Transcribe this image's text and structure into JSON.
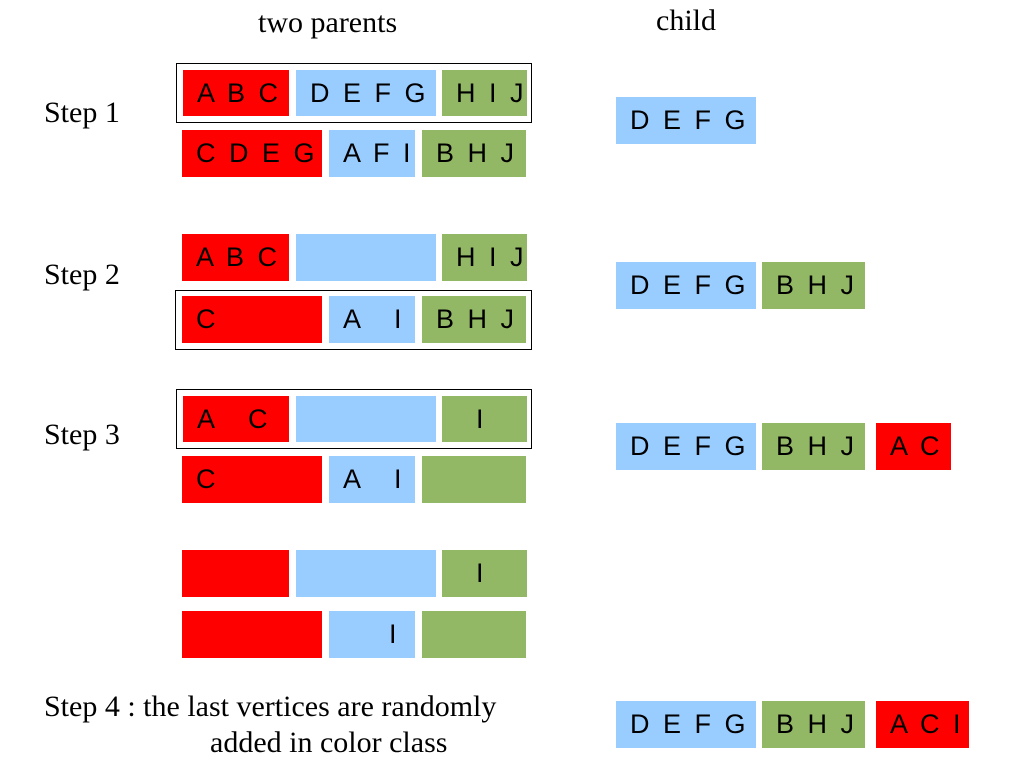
{
  "headers": {
    "parents": "two parents",
    "child": "child"
  },
  "steps": [
    {
      "label": "Step 1",
      "parent1": [
        "A B C",
        "D E F G",
        "H I J"
      ],
      "parent2": [
        "C D E G",
        "A F I",
        "B H J"
      ],
      "child": [
        "D E F G"
      ]
    },
    {
      "label": "Step 2",
      "parent1": [
        "A B C",
        "",
        "H I J"
      ],
      "parent2": [
        "C",
        "A   I",
        "B H J"
      ],
      "child": [
        "D E F G",
        "B H J"
      ]
    },
    {
      "label": "Step 3",
      "parent1": [
        "A   C",
        "",
        "I"
      ],
      "parent2": [
        "C",
        "A   I",
        ""
      ],
      "child": [
        "D E F G",
        "B H J",
        "A C"
      ]
    },
    {
      "label": "",
      "parent1": [
        "",
        "",
        "I"
      ],
      "parent2": [
        "",
        "I",
        ""
      ],
      "child": []
    }
  ],
  "step4": {
    "caption_line1": "Step 4 : the last vertices are randomly",
    "caption_line2": "added in color class",
    "child": [
      "D E F G",
      "B H J",
      "A C I"
    ]
  },
  "colors": {
    "red": "#ff0000",
    "blue": "#99ccff",
    "green": "#92b765"
  }
}
